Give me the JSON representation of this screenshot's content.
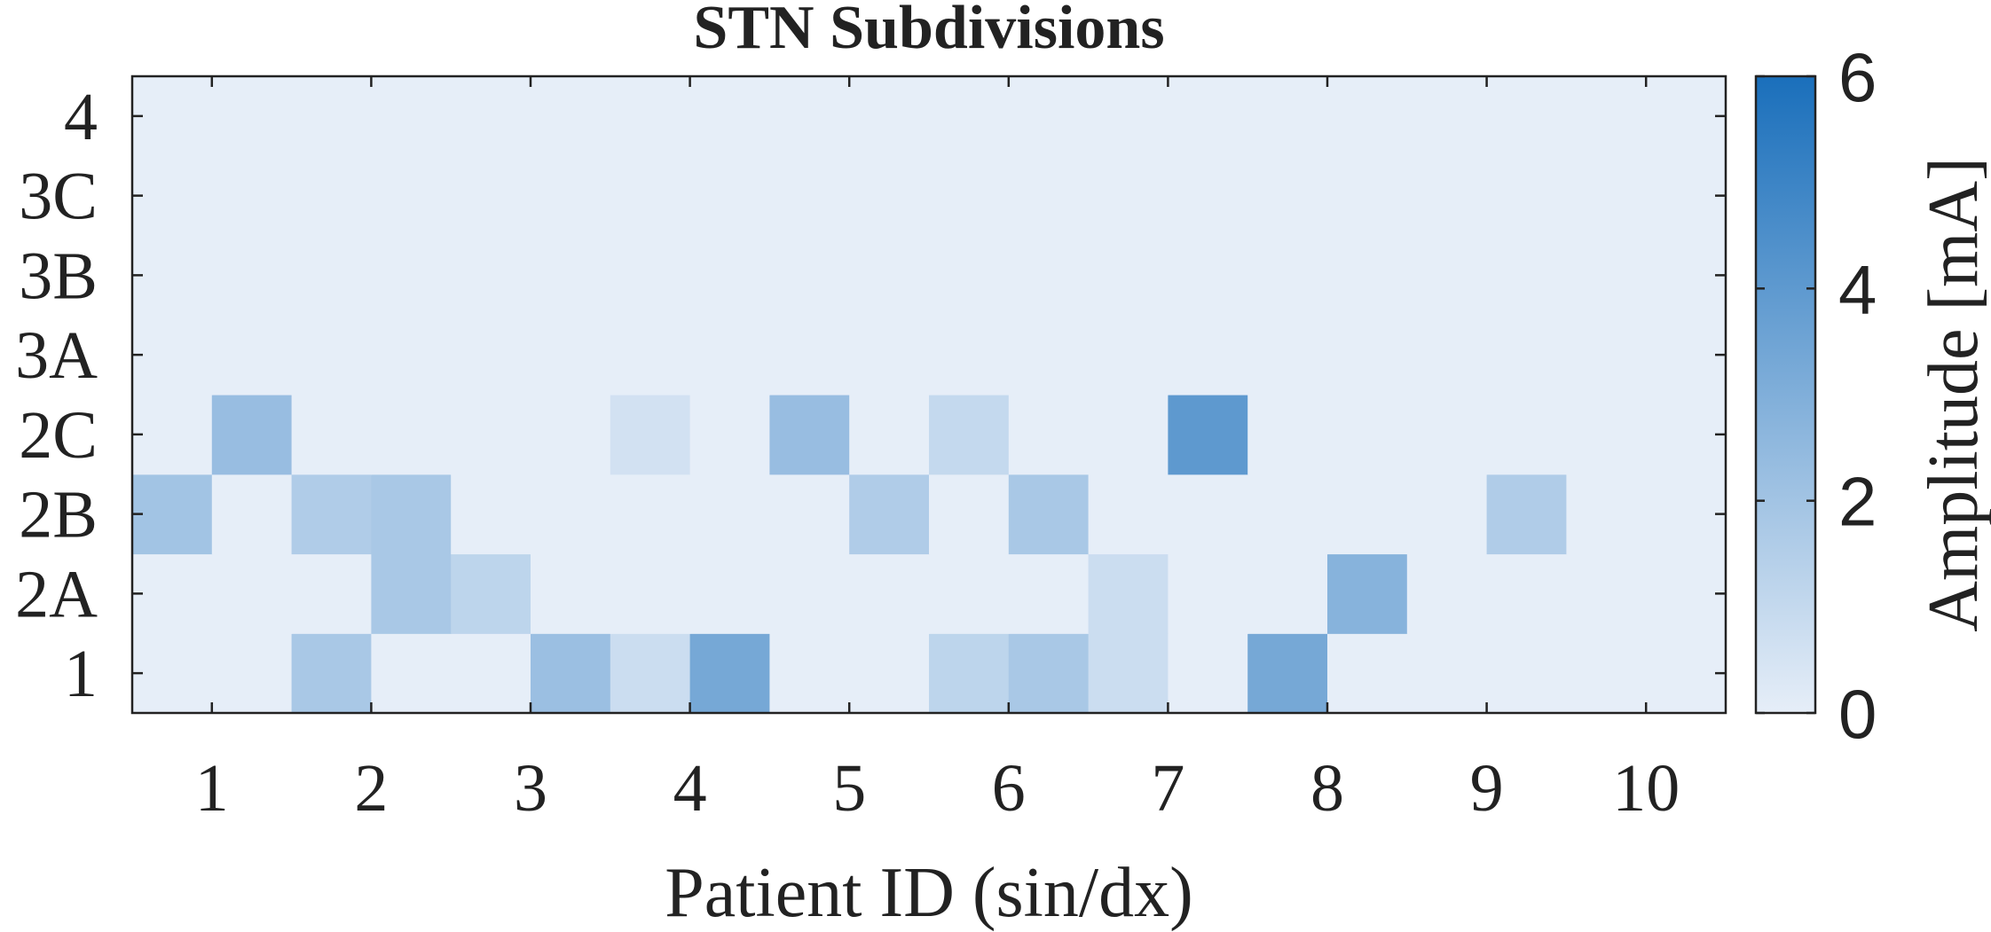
{
  "chart_data": {
    "type": "heatmap",
    "title": "STN Subdivisions",
    "xlabel": "Patient ID (sin/dx)",
    "ylabel": "",
    "x_ticks": [
      "1",
      "2",
      "3",
      "4",
      "5",
      "6",
      "7",
      "8",
      "9",
      "10"
    ],
    "y_ticks": [
      "1",
      "2A",
      "2B",
      "2C",
      "3A",
      "3B",
      "3C",
      "4"
    ],
    "columns": 20,
    "rows": [
      "1",
      "2A",
      "2B",
      "2C",
      "3A",
      "3B",
      "3C",
      "4"
    ],
    "values": [
      [
        0,
        0,
        1.8,
        0,
        0,
        2.2,
        0.8,
        3.3,
        0,
        0,
        1.2,
        1.8,
        0.8,
        0,
        3.3,
        0,
        0,
        0,
        0,
        0
      ],
      [
        0,
        0,
        0,
        1.8,
        1.2,
        0,
        0,
        0,
        0,
        0,
        0,
        0,
        0.8,
        0,
        0,
        2.8,
        0,
        0,
        0,
        0
      ],
      [
        2.0,
        0,
        1.6,
        1.8,
        0,
        0,
        0,
        0,
        0,
        1.6,
        0,
        1.8,
        0,
        0,
        0,
        0,
        0,
        1.6,
        0,
        0
      ],
      [
        0,
        2.3,
        0,
        0,
        0,
        0,
        0.6,
        0,
        2.3,
        0,
        1.0,
        0,
        0,
        4.0,
        0,
        0,
        0,
        0,
        0,
        0
      ],
      [
        0,
        0,
        0,
        0,
        0,
        0,
        0,
        0,
        0,
        0,
        0,
        0,
        0,
        0,
        0,
        0,
        0,
        0,
        0,
        0
      ],
      [
        0,
        0,
        0,
        0,
        0,
        0,
        0,
        0,
        0,
        0,
        0,
        0,
        0,
        0,
        0,
        0,
        0,
        0,
        0,
        0
      ],
      [
        0,
        0,
        0,
        0,
        0,
        0,
        0,
        0,
        0,
        0,
        0,
        0,
        0,
        0,
        0,
        0,
        0,
        0,
        0,
        0
      ],
      [
        0,
        0,
        0,
        0,
        0,
        0,
        0,
        0,
        0,
        0,
        0,
        0,
        0,
        0,
        0,
        0,
        0,
        0,
        0,
        0
      ]
    ],
    "colorbar": {
      "label": "Amplitude [mA]",
      "range": [
        0,
        6
      ],
      "ticks": [
        "0",
        "2",
        "4",
        "6"
      ],
      "color_low": "#e6eef8",
      "color_high": "#1a6fbb"
    },
    "grid": false
  }
}
